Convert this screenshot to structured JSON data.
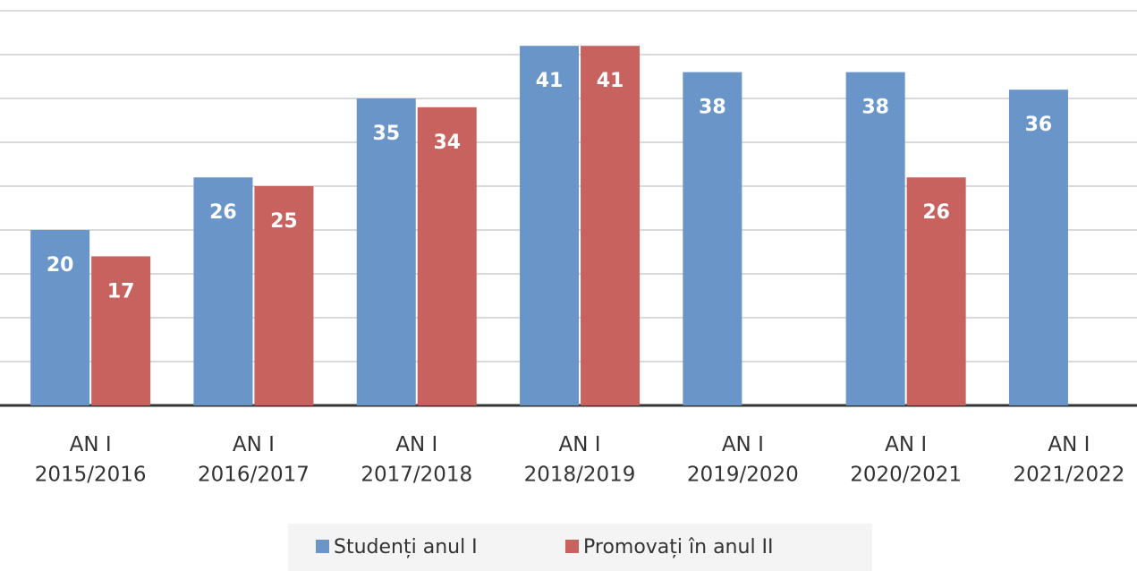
{
  "chart_data": {
    "type": "bar",
    "categories": [
      "AN I\n2015/2016",
      "AN I\n2016/2017",
      "AN I\n2017/2018",
      "AN I\n2018/2019",
      "AN I\n2019/2020",
      "AN I\n2020/2021",
      "AN I\n2021/2022"
    ],
    "series": [
      {
        "name": "Studenți anul I",
        "color": "#6a95c8",
        "values": [
          20,
          26,
          35,
          41,
          38,
          38,
          36
        ]
      },
      {
        "name": "Promovați în anul II",
        "color": "#c8625f",
        "values": [
          17,
          25,
          34,
          41,
          null,
          26,
          null
        ]
      }
    ],
    "ylim": [
      0,
      45
    ],
    "yticks": [
      0,
      5,
      10,
      15,
      20,
      25,
      30,
      35,
      40,
      45
    ],
    "grid": true,
    "legend": "bottom"
  }
}
